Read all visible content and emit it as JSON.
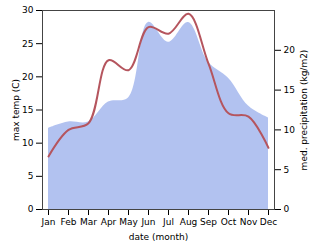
{
  "chart_data": {
    "type": "line",
    "categories": [
      "Jan",
      "Feb",
      "Mar",
      "Apr",
      "May",
      "Jun",
      "Jul",
      "Aug",
      "Sep",
      "Oct",
      "Nov",
      "Dec"
    ],
    "xlabel": "date (month)",
    "ylabel": "max temp (C)",
    "y2label": "med. precipitation (kg/m2)",
    "ylim": [
      0,
      30
    ],
    "yticks": [
      0,
      5,
      10,
      15,
      20,
      25,
      30
    ],
    "y2lim": [
      0,
      25
    ],
    "y2ticks": [
      0,
      5,
      10,
      15,
      20
    ],
    "series": [
      {
        "type": "area",
        "axis": "y2",
        "color": "#aabbee",
        "values": [
          10.2,
          11,
          11,
          13.5,
          14,
          23.5,
          21,
          23.5,
          18.5,
          16.5,
          13,
          11.5
        ]
      },
      {
        "type": "line",
        "color": "#b5555e",
        "values": [
          8,
          12,
          13,
          22.5,
          21,
          27.5,
          26.5,
          29.5,
          22,
          14.5,
          14,
          9.3
        ]
      }
    ]
  }
}
